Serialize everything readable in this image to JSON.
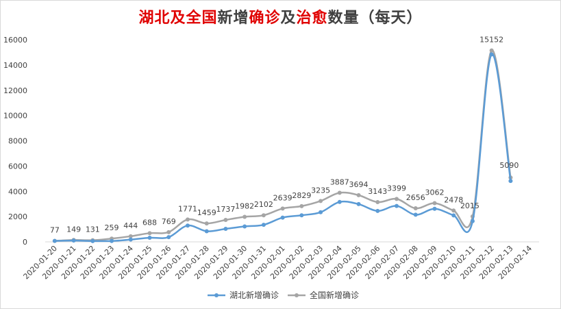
{
  "chart_data": {
    "type": "line",
    "title_parts": [
      {
        "text": "湖北及全国",
        "color": "#e00000"
      },
      {
        "text": "新增",
        "color": "#404040"
      },
      {
        "text": "确诊",
        "color": "#e00000"
      },
      {
        "text": "及",
        "color": "#404040"
      },
      {
        "text": "治愈",
        "color": "#e00000"
      },
      {
        "text": "数量（每天）",
        "color": "#404040"
      }
    ],
    "categories": [
      "2020-01-20",
      "2020-01-21",
      "2020-01-22",
      "2020-01-23",
      "2020-01-24",
      "2020-01-25",
      "2020-01-26",
      "2020-01-27",
      "2020-01-28",
      "2020-01-29",
      "2020-01-30",
      "2020-01-31",
      "2020-02-01",
      "2020-02-02",
      "2020-02-03",
      "2020-02-04",
      "2020-02-05",
      "2020-02-06",
      "2020-02-07",
      "2020-02-08",
      "2020-02-09",
      "2020-02-10",
      "2020-02-11",
      "2020-02-12",
      "2020-02-13",
      "2020-02-14"
    ],
    "series": [
      {
        "name": "湖北新增确诊",
        "color": "#5b9bd5",
        "values": [
          72,
          105,
          62,
          70,
          180,
          323,
          371,
          1291,
          840,
          1032,
          1220,
          1347,
          1921,
          2103,
          2345,
          3156,
          2987,
          2447,
          2841,
          2147,
          2618,
          2097,
          1638,
          14840,
          4823,
          null
        ]
      },
      {
        "name": "全国新增确诊",
        "color": "#a5a5a5",
        "values": [
          77,
          149,
          131,
          259,
          444,
          688,
          769,
          1771,
          1459,
          1737,
          1982,
          2102,
          2639,
          2829,
          3235,
          3887,
          3694,
          3143,
          3399,
          2656,
          3062,
          2478,
          2015,
          15152,
          5090,
          null
        ]
      }
    ],
    "data_labels": [
      "77",
      "149",
      "131",
      "259",
      "444",
      "688",
      "769",
      "1771",
      "1459",
      "1737",
      "1982",
      "2102",
      "2639",
      "2829",
      "3235",
      "3887",
      "3694",
      "3143",
      "3399",
      "2656",
      "3062",
      "2478",
      "2015",
      "15152",
      "5090",
      ""
    ],
    "y_ticks": [
      "0",
      "2000",
      "4000",
      "6000",
      "8000",
      "10000",
      "12000",
      "14000",
      "16000"
    ],
    "ylim": [
      0,
      16000
    ],
    "grid": false,
    "legend_position": "bottom"
  }
}
